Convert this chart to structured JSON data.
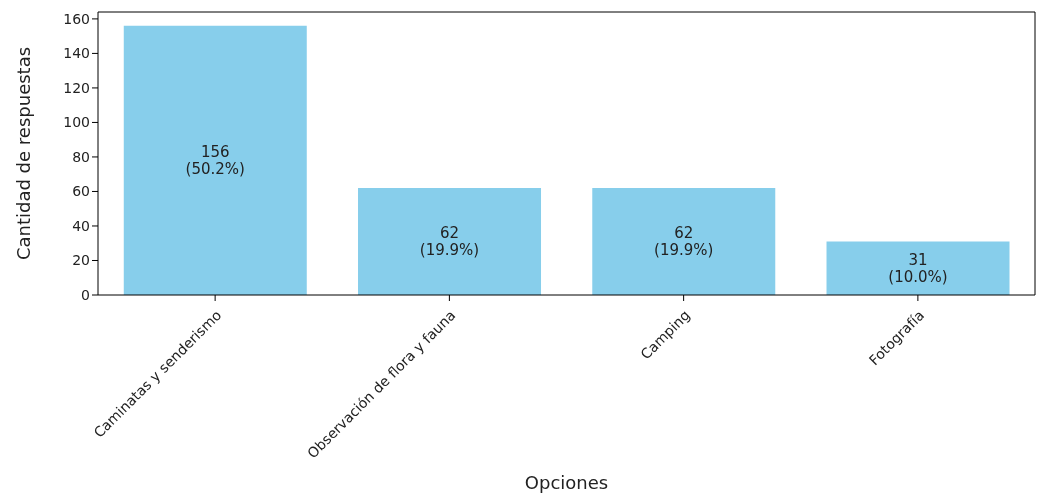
{
  "chart_data": {
    "type": "bar",
    "xlabel": "Opciones",
    "ylabel": "Cantidad de respuestas",
    "categories": [
      "Caminatas y senderismo",
      "Observación de flora y fauna",
      "Camping",
      "Fotografía"
    ],
    "values": [
      156,
      62,
      62,
      31
    ],
    "value_labels": [
      "156\n(50.2%)",
      "62\n(19.9%)",
      "62\n(19.9%)",
      "31\n(10.0%)"
    ],
    "color": "#87ceeb",
    "ylim": [
      0,
      164
    ],
    "yticks": [
      0,
      20,
      40,
      60,
      80,
      100,
      120,
      140,
      160
    ],
    "grid": false,
    "legend": false
  }
}
